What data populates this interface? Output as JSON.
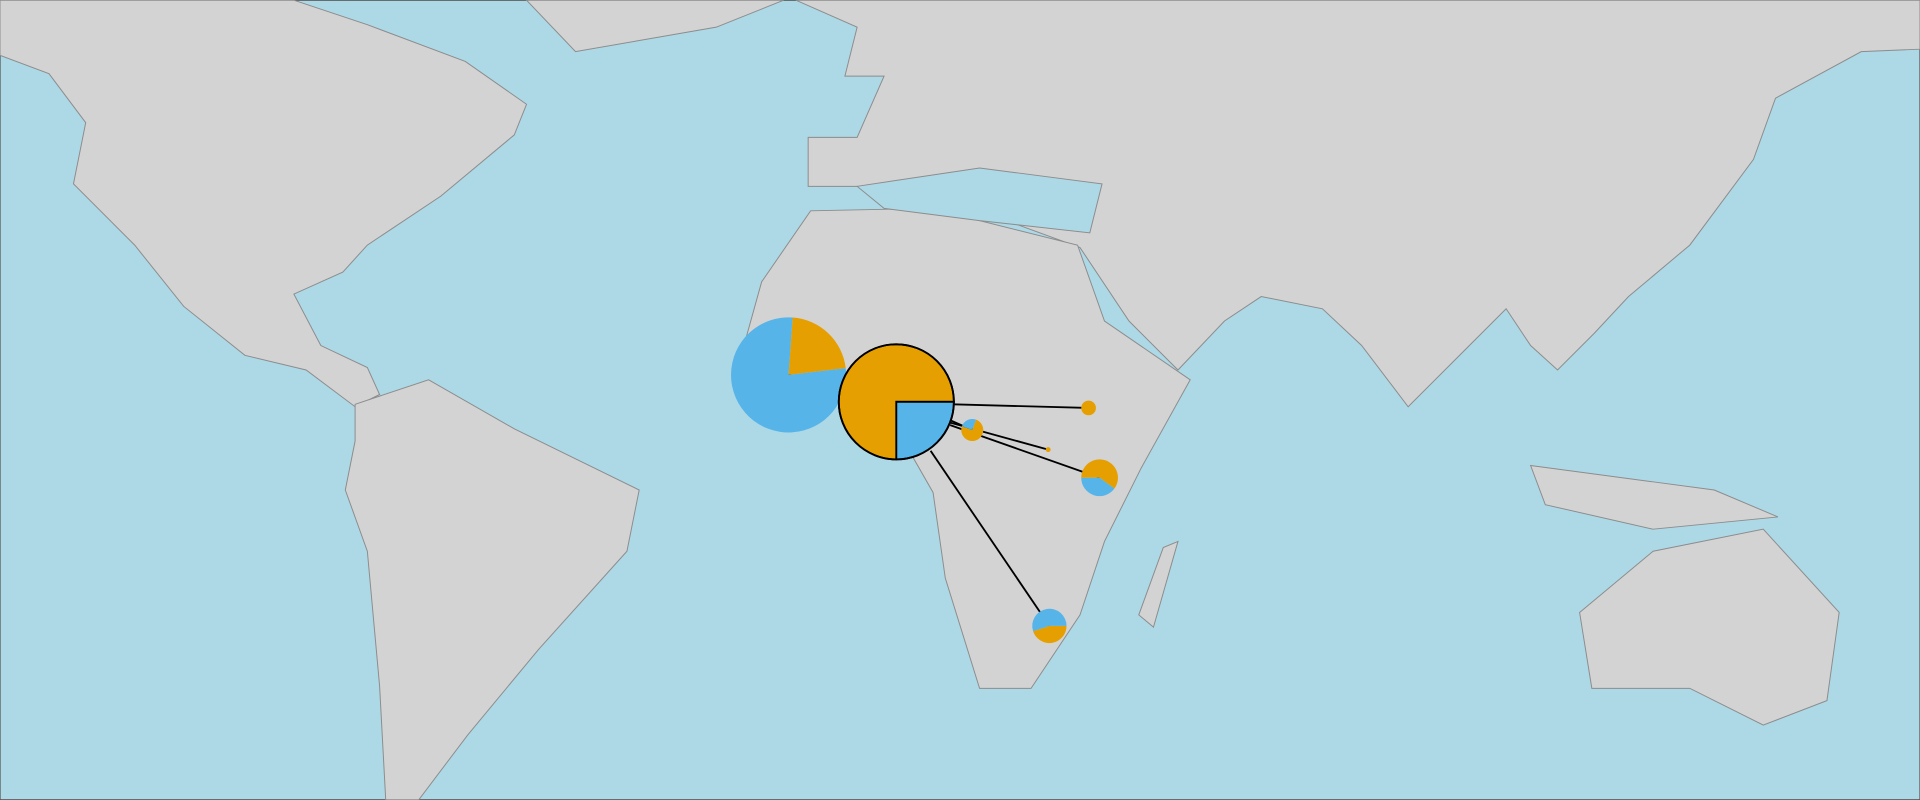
{
  "colors": [
    "#e69f00",
    "#56b4e9"
  ],
  "pies": [
    {
      "values": [
        22,
        78
      ]
    },
    {
      "values": [
        75,
        25
      ]
    },
    {
      "values": [
        100,
        0
      ]
    },
    {
      "values": [
        75,
        25
      ]
    },
    {
      "values": [
        100,
        0
      ]
    },
    {
      "values": [
        60,
        40
      ]
    },
    {
      "values": [
        45,
        55
      ]
    }
  ]
}
